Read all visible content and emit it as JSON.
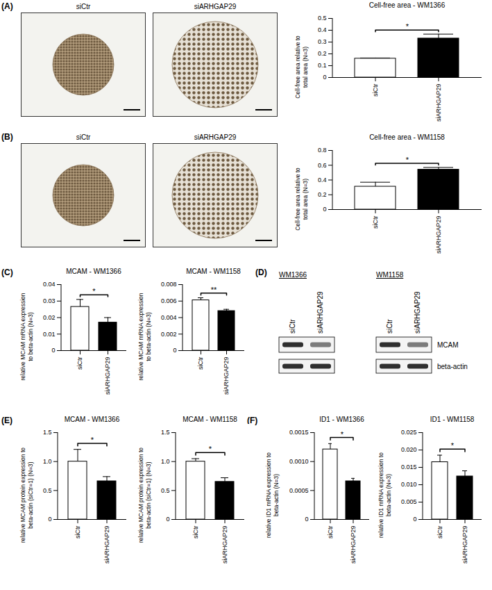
{
  "chart_data": [
    {
      "type": "bar",
      "title": "Cell-free area - WM1366",
      "y_label": "Cell-free area relative to total area (N=3)",
      "categories": [
        "siCtr",
        "siARHGAP29"
      ],
      "values": [
        0.16,
        0.33
      ],
      "errors": [
        0.005,
        0.037
      ],
      "colors": [
        "#ffffff",
        "#000000"
      ],
      "ylim": [
        0,
        0.5
      ],
      "yticks": [
        0,
        0.1,
        0.2,
        0.3,
        0.4,
        0.5
      ],
      "annotation": "*"
    },
    {
      "type": "bar",
      "title": "Cell-free area - WM1158",
      "y_label": "Cell-free area relative to total area (N=3)",
      "categories": [
        "siCtr",
        "siARHGAP29"
      ],
      "values": [
        0.31,
        0.54
      ],
      "errors": [
        0.06,
        0.03
      ],
      "colors": [
        "#ffffff",
        "#000000"
      ],
      "ylim": [
        0,
        0.8
      ],
      "yticks": [
        0,
        0.2,
        0.4,
        0.6,
        0.8
      ],
      "annotation": "*"
    },
    {
      "type": "bar",
      "title": "MCAM - WM1366",
      "y_label": "relative MCAM mRNA expression to beta-actin (N=3)",
      "categories": [
        "siCtr",
        "siARHGAP29"
      ],
      "values": [
        0.0265,
        0.017
      ],
      "errors": [
        0.0045,
        0.003
      ],
      "colors": [
        "#ffffff",
        "#000000"
      ],
      "ylim": [
        0,
        0.04
      ],
      "yticks": [
        0,
        0.01,
        0.02,
        0.03,
        0.04
      ],
      "annotation": "*"
    },
    {
      "type": "bar",
      "title": "MCAM - WM1158",
      "y_label": "relative MCAM mRNA expression to beta-actin (N=3)",
      "categories": [
        "siCtr",
        "siARHGAP29"
      ],
      "values": [
        0.0061,
        0.0048
      ],
      "errors": [
        0.0003,
        0.0002
      ],
      "colors": [
        "#ffffff",
        "#000000"
      ],
      "ylim": [
        0,
        0.008
      ],
      "yticks": [
        0,
        0.002,
        0.004,
        0.006,
        0.008
      ],
      "annotation": "**"
    },
    {
      "type": "bar",
      "title": "MCAM - WM1366",
      "y_label": "relative MCAM protein expression to beta-actin (siCtr=1) (N=3)",
      "categories": [
        "siCtr",
        "siARHGAP29"
      ],
      "values": [
        1.0,
        0.66
      ],
      "errors": [
        0.21,
        0.08
      ],
      "colors": [
        "#ffffff",
        "#000000"
      ],
      "ylim": [
        0,
        1.5
      ],
      "yticks": [
        0,
        0.5,
        {
          "value": 1,
          "label": "1.0"
        },
        1.5
      ],
      "annotation": "*"
    },
    {
      "type": "bar",
      "title": "MCAM - WM1158",
      "y_label": "relative MCAM protein expression to beta-actin (siCtr=1) (N=3)",
      "categories": [
        "siCtr",
        "siARHGAP29"
      ],
      "values": [
        1.0,
        0.65
      ],
      "errors": [
        0.05,
        0.07
      ],
      "colors": [
        "#ffffff",
        "#000000"
      ],
      "ylim": [
        0,
        1.5
      ],
      "yticks": [
        0,
        0.5,
        {
          "value": 1,
          "label": "1.0"
        },
        1.5
      ],
      "annotation": "*"
    },
    {
      "type": "bar",
      "title": "ID1 - WM1366",
      "y_label": "relative ID1 mRNA expression to beta-actin (N=3)",
      "categories": [
        "siCtr",
        "siARHGAP29"
      ],
      "values": [
        0.00121,
        0.00066
      ],
      "errors": [
        0.0001,
        5e-05
      ],
      "colors": [
        "#ffffff",
        "#000000"
      ],
      "ylim": [
        0,
        0.0015
      ],
      "yticks": [
        0,
        0.0005,
        {
          "value": 0.001,
          "label": "0.0010"
        },
        0.0015
      ],
      "annotation": "*"
    },
    {
      "type": "bar",
      "title": "ID1 - WM1158",
      "y_label": "relative ID1 mRNA expression to beta-actin (N=3)",
      "categories": [
        "siCtr",
        "siARHGAP29"
      ],
      "values": [
        0.0165,
        0.0124
      ],
      "errors": [
        0.002,
        0.0016
      ],
      "colors": [
        "#ffffff",
        "#000000"
      ],
      "ylim": [
        0,
        0.025
      ],
      "yticks": [
        0,
        0.005,
        {
          "value": 0.01,
          "label": "0.010"
        },
        0.015,
        {
          "value": 0.02,
          "label": "0.020"
        },
        0.025
      ],
      "annotation": "*"
    }
  ],
  "panel_labels": [
    "(A)",
    "(B)",
    "(C)",
    "(D)",
    "(E)",
    "(F)"
  ],
  "micrographs": {
    "A": [
      "siCtr",
      "siARHGAP29"
    ],
    "B": [
      "siCtr",
      "siARHGAP29"
    ]
  },
  "western_blot": {
    "blots": [
      {
        "cell_line": "WM1366",
        "lanes": [
          "siCtr",
          "siARHGAP29"
        ]
      },
      {
        "cell_line": "WM1158",
        "lanes": [
          "siCtr",
          "siARHGAP29"
        ]
      }
    ],
    "bands": [
      "MCAM",
      "beta-actin"
    ]
  }
}
